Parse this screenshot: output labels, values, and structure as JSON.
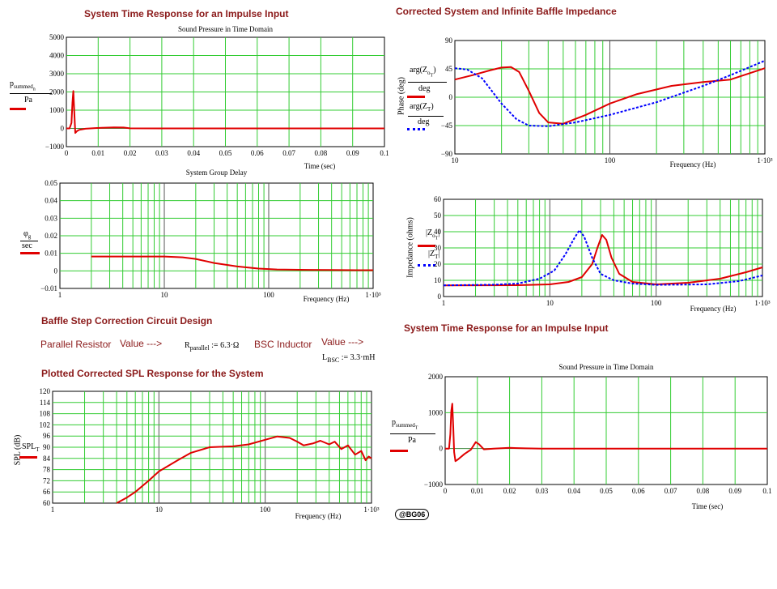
{
  "titles": {
    "impulse_left": "System Time Response for an Impulse Input",
    "corrected_impedance": "Corrected System and Infinite Baffle Impedance",
    "bsc_design": "Baffle Step Correction Circuit Design",
    "plotted_spl": "Plotted Corrected SPL Response for the System",
    "impulse_right": "System Time Response for an Impulse Input"
  },
  "bsc_design": {
    "parallel_resistor_label": "Parallel Resistor",
    "value_arrow_1": "Value --->",
    "r_parallel_expr": "R",
    "r_parallel_sub": "parallel",
    "r_parallel_value": " := 6.3·Ω",
    "bsc_inductor_label": "BSC Inductor",
    "value_arrow_2": "Value --->",
    "l_bsc_expr": "L",
    "l_bsc_sub": "BSC",
    "l_bsc_value": " := 3.3·mH"
  },
  "badge": "@BG06",
  "chart_data": [
    {
      "id": "impulse-left",
      "type": "line",
      "title": "Sound Pressure in Time Domain",
      "xlabel": "Time (sec)",
      "ylabel_num": "p",
      "ylabel_sub": "summed",
      "ylabel_sub2": "n",
      "ylabel_den": "Pa",
      "xlim": [
        0,
        0.1
      ],
      "ylim": [
        -1000,
        5000
      ],
      "xticks": [
        "0",
        "0.01",
        "0.02",
        "0.03",
        "0.04",
        "0.05",
        "0.06",
        "0.07",
        "0.08",
        "0.09",
        "0.1"
      ],
      "yticks": [
        "5000",
        "4000",
        "3000",
        "2000",
        "1000",
        "0",
        "−1000"
      ],
      "grid": true,
      "series": [
        {
          "color": "#e00000",
          "points": [
            [
              0,
              0
            ],
            [
              0.001,
              0
            ],
            [
              0.0016,
              300
            ],
            [
              0.0019,
              1400
            ],
            [
              0.0022,
              2050
            ],
            [
              0.0025,
              900
            ],
            [
              0.0028,
              -250
            ],
            [
              0.0033,
              -150
            ],
            [
              0.004,
              -80
            ],
            [
              0.006,
              -20
            ],
            [
              0.009,
              20
            ],
            [
              0.012,
              40
            ],
            [
              0.015,
              60
            ],
            [
              0.018,
              50
            ],
            [
              0.02,
              5
            ],
            [
              0.03,
              0
            ],
            [
              0.1,
              0
            ]
          ]
        }
      ]
    },
    {
      "id": "group-delay",
      "type": "line",
      "title": "System Group Delay",
      "xlabel": "Frequency (Hz)",
      "xscale": "log",
      "ylabel_num": "φ",
      "ylabel_sub": "g",
      "ylabel_den": "sec",
      "xlim": [
        1,
        1000
      ],
      "ylim": [
        -0.01,
        0.05
      ],
      "xticks": [
        "1",
        "10",
        "100",
        "1·10³"
      ],
      "yticks": [
        "0.05",
        "0.04",
        "0.03",
        "0.02",
        "0.01",
        "0",
        "−0.01"
      ],
      "grid": true,
      "series": [
        {
          "color": "#e00000",
          "points": [
            [
              2,
              0.0082
            ],
            [
              5,
              0.0082
            ],
            [
              10,
              0.0082
            ],
            [
              15,
              0.0077
            ],
            [
              20,
              0.0068
            ],
            [
              30,
              0.0045
            ],
            [
              50,
              0.0025
            ],
            [
              80,
              0.0013
            ],
            [
              120,
              0.0008
            ],
            [
              200,
              0.0006
            ],
            [
              400,
              0.0005
            ],
            [
              700,
              0.0004
            ],
            [
              1000,
              0.0004
            ]
          ]
        }
      ]
    },
    {
      "id": "phase",
      "type": "line",
      "xlabel": "Frequency (Hz)",
      "xscale": "log",
      "ylabel": "Phase (deg)",
      "legend": [
        {
          "num": "arg(Z",
          "sub": "o",
          "sub2": "T",
          "close": ")",
          "den": "deg",
          "style": "solid"
        },
        {
          "num": "arg(Z",
          "sub": "T",
          "sub2": "",
          "close": ")",
          "den": "deg",
          "style": "dotted"
        }
      ],
      "xlim": [
        10,
        1000
      ],
      "ylim": [
        -90,
        90
      ],
      "xticks": [
        "10",
        "100",
        "1·10³"
      ],
      "yticks": [
        "90",
        "45",
        "0",
        "−45",
        "−90"
      ],
      "grid": true,
      "series": [
        {
          "color": "#e00000",
          "style": "solid",
          "points": [
            [
              10,
              28
            ],
            [
              13,
              35
            ],
            [
              17,
              43
            ],
            [
              20,
              47
            ],
            [
              23,
              48
            ],
            [
              26,
              40
            ],
            [
              30,
              10
            ],
            [
              35,
              -25
            ],
            [
              40,
              -40
            ],
            [
              50,
              -42
            ],
            [
              70,
              -28
            ],
            [
              100,
              -10
            ],
            [
              150,
              5
            ],
            [
              250,
              18
            ],
            [
              400,
              24
            ],
            [
              600,
              28
            ],
            [
              1000,
              46
            ]
          ]
        },
        {
          "color": "#0000ff",
          "style": "dotted",
          "points": [
            [
              10,
              46
            ],
            [
              12,
              44
            ],
            [
              15,
              30
            ],
            [
              20,
              -10
            ],
            [
              25,
              -35
            ],
            [
              30,
              -45
            ],
            [
              40,
              -46
            ],
            [
              60,
              -40
            ],
            [
              100,
              -28
            ],
            [
              200,
              -8
            ],
            [
              400,
              18
            ],
            [
              600,
              35
            ],
            [
              1000,
              58
            ]
          ]
        }
      ]
    },
    {
      "id": "impedance",
      "type": "line",
      "xlabel": "Frequency (Hz)",
      "xscale": "log",
      "ylabel": "Impedance (ohms)",
      "legend": [
        {
          "num": "|Z",
          "sub": "o",
          "sub2": "T",
          "close": "|",
          "style": "solid"
        },
        {
          "num": "|Z",
          "sub": "T",
          "sub2": "",
          "close": "|",
          "style": "dotted"
        }
      ],
      "xlim": [
        1,
        1000
      ],
      "ylim": [
        0,
        60
      ],
      "xticks": [
        "1",
        "10",
        "100",
        "1·10³"
      ],
      "yticks": [
        "60",
        "50",
        "40",
        "30",
        "20",
        "10",
        "0"
      ],
      "grid": true,
      "series": [
        {
          "color": "#e00000",
          "style": "solid",
          "points": [
            [
              1,
              6.9
            ],
            [
              5,
              7
            ],
            [
              10,
              7.5
            ],
            [
              15,
              9
            ],
            [
              20,
              12
            ],
            [
              25,
              20
            ],
            [
              28,
              30
            ],
            [
              31,
              38
            ],
            [
              34,
              35
            ],
            [
              38,
              24
            ],
            [
              45,
              14
            ],
            [
              60,
              9
            ],
            [
              100,
              7.5
            ],
            [
              200,
              8.5
            ],
            [
              400,
              11
            ],
            [
              700,
              15
            ],
            [
              1000,
              18
            ]
          ]
        },
        {
          "color": "#0000ff",
          "style": "dotted",
          "points": [
            [
              1,
              6.9
            ],
            [
              3,
              7.3
            ],
            [
              5,
              8
            ],
            [
              8,
              11
            ],
            [
              11,
              16
            ],
            [
              14,
              26
            ],
            [
              17,
              36
            ],
            [
              19,
              41
            ],
            [
              21,
              37
            ],
            [
              25,
              24
            ],
            [
              30,
              14
            ],
            [
              40,
              10
            ],
            [
              60,
              8
            ],
            [
              100,
              7.2
            ],
            [
              300,
              7.5
            ],
            [
              600,
              9.5
            ],
            [
              1000,
              13
            ]
          ]
        }
      ]
    },
    {
      "id": "spl",
      "type": "line",
      "xlabel": "Frequency (Hz)",
      "xscale": "log",
      "ylabel": "SPL (dB)",
      "legend_label": "SPL",
      "legend_sub": "T",
      "xlim": [
        1,
        1000
      ],
      "ylim": [
        60,
        120
      ],
      "xticks": [
        "1",
        "10",
        "100",
        "1·10³"
      ],
      "yticks": [
        "120",
        "114",
        "108",
        "102",
        "96",
        "90",
        "84",
        "78",
        "72",
        "66",
        "60"
      ],
      "grid": true,
      "series": [
        {
          "color": "#e00000",
          "points": [
            [
              4,
              60
            ],
            [
              5,
              63
            ],
            [
              6,
              66
            ],
            [
              8,
              72
            ],
            [
              10,
              77
            ],
            [
              15,
              83
            ],
            [
              20,
              87
            ],
            [
              30,
              90
            ],
            [
              50,
              90.5
            ],
            [
              70,
              91.5
            ],
            [
              100,
              94
            ],
            [
              130,
              95.8
            ],
            [
              170,
              95
            ],
            [
              200,
              93
            ],
            [
              230,
              91
            ],
            [
              280,
              92
            ],
            [
              330,
              93.5
            ],
            [
              400,
              91.5
            ],
            [
              450,
              93
            ],
            [
              520,
              89
            ],
            [
              600,
              91
            ],
            [
              700,
              86
            ],
            [
              800,
              88
            ],
            [
              880,
              83
            ],
            [
              940,
              85
            ],
            [
              1000,
              84
            ]
          ]
        }
      ]
    },
    {
      "id": "impulse-right",
      "type": "line",
      "title": "Sound Pressure in Time Domain",
      "xlabel": "Time (sec)",
      "ylabel_num": "p",
      "ylabel_sub": "summed",
      "ylabel_sub2": "T",
      "ylabel_den": "Pa",
      "xlim": [
        0,
        0.1
      ],
      "ylim": [
        -1000,
        2000
      ],
      "xticks": [
        "0",
        "0.01",
        "0.02",
        "0.03",
        "0.04",
        "0.05",
        "0.06",
        "0.07",
        "0.08",
        "0.09",
        "0.1"
      ],
      "yticks": [
        "2000",
        "1000",
        "0",
        "−1000"
      ],
      "grid": true,
      "series": [
        {
          "color": "#e00000",
          "points": [
            [
              0,
              0
            ],
            [
              0.0012,
              0
            ],
            [
              0.0016,
              400
            ],
            [
              0.0019,
              1050
            ],
            [
              0.0022,
              1250
            ],
            [
              0.0025,
              600
            ],
            [
              0.0028,
              -100
            ],
            [
              0.0032,
              -350
            ],
            [
              0.004,
              -300
            ],
            [
              0.006,
              -150
            ],
            [
              0.008,
              -30
            ],
            [
              0.0095,
              180
            ],
            [
              0.0105,
              120
            ],
            [
              0.012,
              -20
            ],
            [
              0.015,
              0
            ],
            [
              0.02,
              20
            ],
            [
              0.025,
              5
            ],
            [
              0.03,
              0
            ],
            [
              0.1,
              0
            ]
          ]
        }
      ]
    }
  ]
}
